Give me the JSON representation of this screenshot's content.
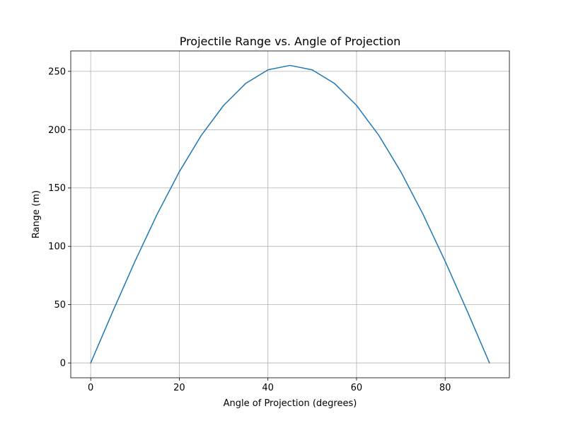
{
  "chart_data": {
    "type": "line",
    "title": "Projectile Range vs. Angle of Projection",
    "xlabel": "Angle of Projection (degrees)",
    "ylabel": "Range (m)",
    "xlim": [
      -4.5,
      94.5
    ],
    "ylim": [
      -12.7,
      267.5
    ],
    "xticks": [
      0,
      20,
      40,
      60,
      80
    ],
    "yticks": [
      0,
      50,
      100,
      150,
      200,
      250
    ],
    "grid": true,
    "legend": "none",
    "series": [
      {
        "color": "#1f77b4",
        "x": [
          0,
          5,
          10,
          15,
          20,
          25,
          30,
          35,
          40,
          45,
          50,
          55,
          60,
          65,
          70,
          75,
          80,
          85,
          90
        ],
        "y": [
          0,
          44.3,
          87.2,
          127.5,
          163.9,
          195.3,
          220.8,
          239.7,
          251.3,
          255.1,
          251.3,
          239.7,
          220.8,
          195.3,
          163.9,
          127.5,
          87.2,
          44.3,
          0
        ]
      }
    ]
  }
}
